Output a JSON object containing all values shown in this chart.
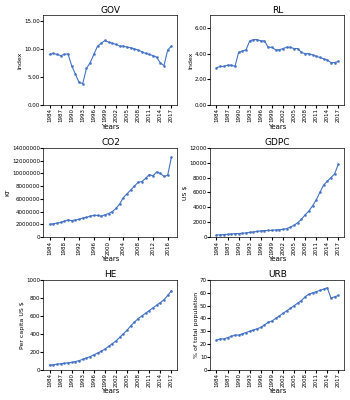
{
  "years": [
    1984,
    1985,
    1986,
    1987,
    1988,
    1989,
    1990,
    1991,
    1992,
    1993,
    1994,
    1995,
    1996,
    1997,
    1998,
    1999,
    2000,
    2001,
    2002,
    2003,
    2004,
    2005,
    2006,
    2007,
    2008,
    2009,
    2010,
    2011,
    2012,
    2013,
    2014,
    2015,
    2016,
    2017
  ],
  "GOV": [
    9.0,
    9.2,
    9.0,
    8.8,
    9.0,
    9.1,
    7.0,
    5.5,
    4.0,
    3.8,
    6.5,
    7.5,
    9.0,
    10.5,
    11.0,
    11.5,
    11.2,
    11.0,
    10.8,
    10.5,
    10.5,
    10.3,
    10.2,
    10.0,
    9.8,
    9.5,
    9.2,
    9.0,
    8.8,
    8.5,
    7.5,
    7.0,
    9.8,
    10.5
  ],
  "RL": [
    2.9,
    3.0,
    3.0,
    3.1,
    3.1,
    3.0,
    4.1,
    4.2,
    4.3,
    5.0,
    5.1,
    5.1,
    5.0,
    5.0,
    4.5,
    4.5,
    4.3,
    4.3,
    4.4,
    4.5,
    4.5,
    4.4,
    4.4,
    4.1,
    4.0,
    4.0,
    3.9,
    3.8,
    3.7,
    3.6,
    3.5,
    3.3,
    3.3,
    3.4
  ],
  "CO2": [
    2000000,
    2100000,
    2200000,
    2300000,
    2500000,
    2700000,
    2600000,
    2700000,
    2800000,
    3000000,
    3100000,
    3300000,
    3400000,
    3400000,
    3300000,
    3500000,
    3700000,
    4000000,
    4500000,
    5200000,
    6200000,
    6800000,
    7400000,
    8000000,
    8600000,
    8700000,
    9200000,
    9800000,
    9600000,
    10200000,
    10000000,
    9500000,
    9700000,
    12500000
  ],
  "GDPC": [
    300,
    320,
    350,
    380,
    430,
    480,
    490,
    520,
    580,
    640,
    700,
    770,
    840,
    890,
    900,
    930,
    960,
    1000,
    1060,
    1150,
    1350,
    1600,
    1950,
    2400,
    3000,
    3500,
    4200,
    5000,
    6000,
    7000,
    7500,
    8000,
    8500,
    9800
  ],
  "HE": [
    50,
    55,
    60,
    65,
    70,
    75,
    80,
    90,
    100,
    115,
    130,
    145,
    165,
    185,
    205,
    230,
    260,
    290,
    320,
    360,
    400,
    440,
    490,
    530,
    570,
    600,
    630,
    660,
    690,
    720,
    750,
    780,
    830,
    880
  ],
  "URB": [
    23,
    24,
    24,
    25,
    26,
    27,
    27,
    28,
    29,
    30,
    31,
    32,
    33,
    35,
    37,
    38,
    40,
    42,
    44,
    46,
    48,
    50,
    52,
    54,
    57,
    59,
    60,
    61,
    62,
    63,
    64,
    56,
    57,
    58
  ],
  "line_color": "#4472C4",
  "marker_size": 1.5,
  "line_width": 0.8,
  "bg_color": "#ffffff",
  "year_ticks_std": [
    1984,
    1987,
    1990,
    1993,
    1996,
    1999,
    2002,
    2005,
    2008,
    2011,
    2014,
    2017
  ],
  "co2_year_ticks": [
    1984,
    1988,
    1992,
    1996,
    2000,
    2004,
    2008,
    2012,
    2016
  ],
  "titles": [
    "GOV",
    "RL",
    "CO2",
    "GDPC",
    "HE",
    "URB"
  ],
  "ylabels": [
    "Index",
    "Index",
    "KT",
    "US $",
    "Per capita US $",
    "% of total population"
  ],
  "gov_ylim": [
    0,
    16
  ],
  "gov_yticks": [
    0.0,
    5.0,
    10.0,
    15.0
  ],
  "gov_yticklabels": [
    "0.00",
    "5.00",
    "10.00",
    "15.00"
  ],
  "rl_ylim": [
    0,
    7
  ],
  "rl_yticks": [
    0.0,
    2.0,
    4.0,
    6.0
  ],
  "rl_yticklabels": [
    "0.00",
    "2.00",
    "4.00",
    "6.00"
  ],
  "co2_ylim": [
    0,
    14000000
  ],
  "co2_yticks": [
    0,
    2000000,
    4000000,
    6000000,
    8000000,
    10000000,
    12000000,
    14000000
  ],
  "co2_yticklabels": [
    "0",
    "2000000",
    "4000000",
    "6000000",
    "8000000",
    "10000000",
    "12000000",
    "14000000"
  ],
  "gdpc_ylim": [
    0,
    12000
  ],
  "gdpc_yticks": [
    0,
    2000,
    4000,
    6000,
    8000,
    10000,
    12000
  ],
  "gdpc_yticklabels": [
    "0",
    "2000",
    "4000",
    "6000",
    "8000",
    "10000",
    "12000"
  ],
  "he_ylim": [
    0,
    1000
  ],
  "he_yticks": [
    0,
    200,
    400,
    600,
    800,
    1000
  ],
  "he_yticklabels": [
    "0",
    "200",
    "400",
    "600",
    "800",
    "1000"
  ],
  "urb_ylim": [
    0,
    70
  ],
  "urb_yticks": [
    0,
    10,
    20,
    30,
    40,
    50,
    60,
    70
  ],
  "urb_yticklabels": [
    "0",
    "10",
    "20",
    "30",
    "40",
    "50",
    "60",
    "70"
  ]
}
